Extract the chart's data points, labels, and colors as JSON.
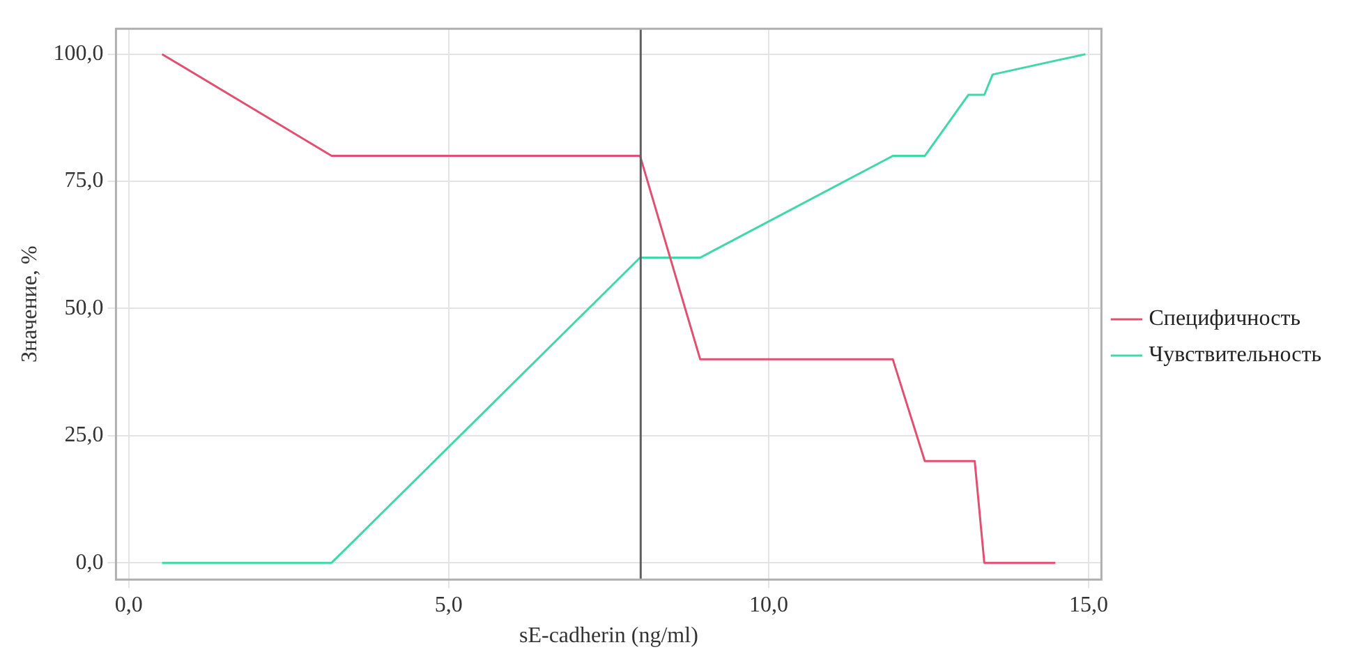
{
  "chart_data": {
    "type": "line",
    "xlabel": "sE-cadherin (ng/ml)",
    "ylabel": "Значение, %",
    "xlim": [
      -0.2,
      15.2
    ],
    "ylim": [
      -3.3,
      105
    ],
    "xticks": [
      {
        "value": 0,
        "label": "0,0"
      },
      {
        "value": 5,
        "label": "5,0"
      },
      {
        "value": 10,
        "label": "10,0"
      },
      {
        "value": 15,
        "label": "15,0"
      }
    ],
    "yticks": [
      {
        "value": 0,
        "label": "0,0"
      },
      {
        "value": 25,
        "label": "25,0"
      },
      {
        "value": 50,
        "label": "50,0"
      },
      {
        "value": 75,
        "label": "75,0"
      },
      {
        "value": 100,
        "label": "100,0"
      }
    ],
    "grid": true,
    "legend": "right",
    "marker": "none",
    "line_style": "solid",
    "ref_lines": [
      {
        "axis": "x",
        "value": 8.0,
        "color": "#606060"
      }
    ],
    "series": [
      {
        "name": "Специфичность",
        "color": "#e05070",
        "x": [
          0.52,
          3.17,
          7.99,
          8.93,
          11.94,
          12.44,
          13.22,
          13.37,
          14.48
        ],
        "values": [
          100,
          80,
          80,
          40,
          40,
          20,
          20,
          0,
          0
        ]
      },
      {
        "name": "Чувствительность",
        "color": "#40d8a8",
        "x": [
          0.52,
          3.17,
          7.99,
          8.93,
          11.94,
          12.44,
          13.12,
          13.37,
          13.5,
          14.95
        ],
        "values": [
          0,
          0,
          60,
          60,
          80,
          80,
          92,
          92,
          96,
          100
        ]
      }
    ]
  }
}
